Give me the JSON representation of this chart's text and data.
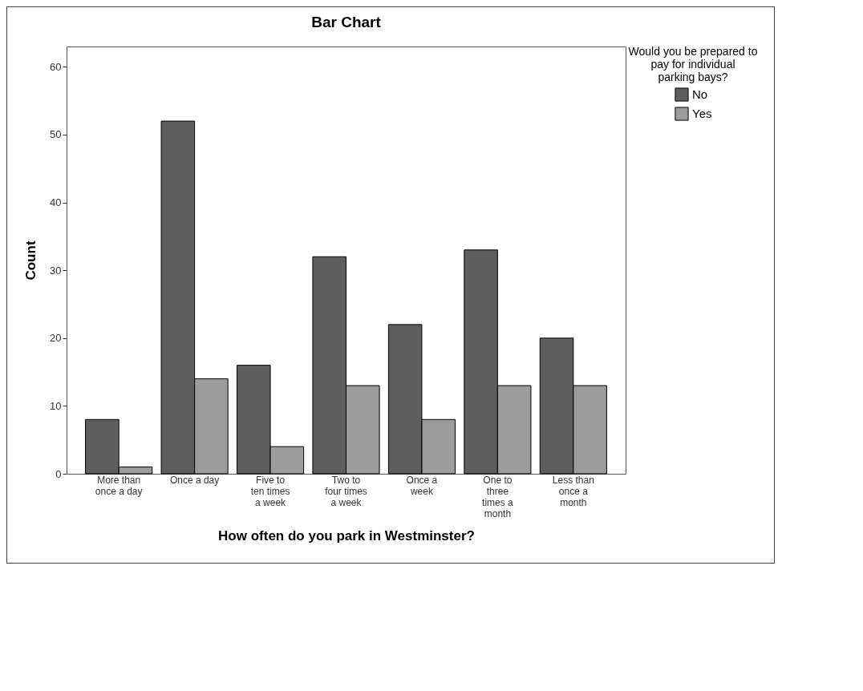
{
  "chart_data": {
    "type": "bar",
    "title": "Bar Chart",
    "xlabel": "How often do you park in Westminster?",
    "ylabel": "Count",
    "legend_title": "Would you be prepared to pay for individual parking bays?",
    "categories": [
      "More than once a day",
      "Once a day",
      "Five to ten times a week",
      "Two to four times a week",
      "Once a week",
      "One to three times a month",
      "Less than once a month"
    ],
    "series": [
      {
        "name": "No",
        "color": "#5e5e5e",
        "values": [
          8,
          52,
          16,
          32,
          22,
          33,
          20
        ]
      },
      {
        "name": "Yes",
        "color": "#9c9c9c",
        "values": [
          1,
          14,
          4,
          13,
          8,
          13,
          13
        ]
      }
    ],
    "ylim": [
      0,
      63
    ],
    "yticks": [
      0,
      10,
      20,
      30,
      40,
      50,
      60
    ],
    "grid": false,
    "legend": "top right"
  }
}
